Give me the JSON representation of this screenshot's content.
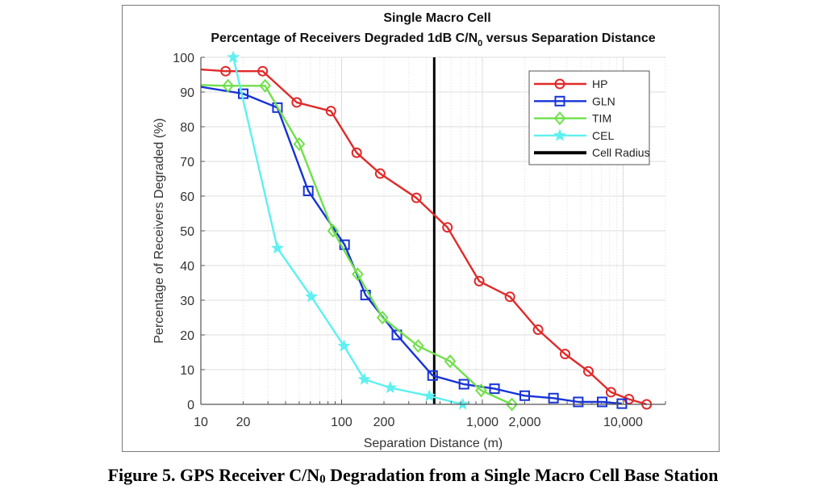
{
  "chart_data": {
    "type": "line",
    "title": "Single Macro Cell",
    "subtitle": "Percentage of Receivers Degraded 1dB C/N",
    "subtitle_sub": "0",
    "subtitle_tail": " versus Separation Distance",
    "xlabel": "Separation Distance (m)",
    "ylabel": "Percentage of Receivers Degraded (%)",
    "xscale": "log",
    "xlim": [
      10,
      20000
    ],
    "ylim": [
      0,
      100
    ],
    "grid": true,
    "legend_position": "top-right",
    "xticks": [
      {
        "value": 10,
        "label": "10"
      },
      {
        "value": 20,
        "label": "20"
      },
      {
        "value": 100,
        "label": "100"
      },
      {
        "value": 200,
        "label": "200"
      },
      {
        "value": 1000,
        "label": "1,000"
      },
      {
        "value": 2000,
        "label": "2,000"
      },
      {
        "value": 10000,
        "label": "10,000"
      }
    ],
    "yticks": [
      0,
      10,
      20,
      30,
      40,
      50,
      60,
      70,
      80,
      90,
      100
    ],
    "series": [
      {
        "name": "HP",
        "color": "#e02a2a",
        "marker": "circle",
        "x": [
          10,
          15,
          27.5,
          48,
          84,
          128,
          188,
          340,
          565,
          950,
          1570,
          2490,
          3870,
          5670,
          8200,
          11000,
          14700
        ],
        "y": [
          96.5,
          96,
          96,
          87,
          84.5,
          72.5,
          66.5,
          59.5,
          51,
          35.5,
          31,
          21.5,
          14.5,
          9.5,
          3.5,
          1.5,
          0
        ],
        "first_marker": 1
      },
      {
        "name": "GLN",
        "color": "#1733d6",
        "marker": "square",
        "x": [
          10,
          20,
          35,
          58,
          105,
          148,
          247,
          443,
          740,
          1220,
          2000,
          3200,
          4800,
          7100,
          9800
        ],
        "y": [
          91.5,
          89.5,
          85.5,
          61.5,
          46,
          31.5,
          20,
          8.3,
          5.8,
          4.5,
          2.5,
          1.8,
          0.7,
          0.7,
          0.2
        ],
        "first_marker": 1
      },
      {
        "name": "TIM",
        "color": "#6fe04a",
        "marker": "diamond",
        "x": [
          10,
          15.6,
          28.6,
          50,
          87,
          130,
          195,
          350,
          590,
          980,
          1620
        ],
        "y": [
          92,
          91.8,
          91.8,
          75,
          50,
          37.5,
          25,
          16.8,
          12.4,
          4,
          0
        ],
        "first_marker": 1
      },
      {
        "name": "CEL",
        "color": "#5ff0f0",
        "marker": "star",
        "x": [
          17,
          35,
          61,
          104,
          145,
          222,
          420,
          725
        ],
        "y": [
          100,
          45,
          31,
          16.8,
          7.2,
          4.8,
          2.4,
          0
        ],
        "first_marker": 0
      }
    ],
    "vline": {
      "name": "Cell Radius",
      "x": 455,
      "color": "#000000"
    }
  },
  "caption": {
    "pre": "Figure 5. GPS Receiver C/N",
    "sub": "0",
    "post": " Degradation from a Single Macro Cell Base Station"
  }
}
